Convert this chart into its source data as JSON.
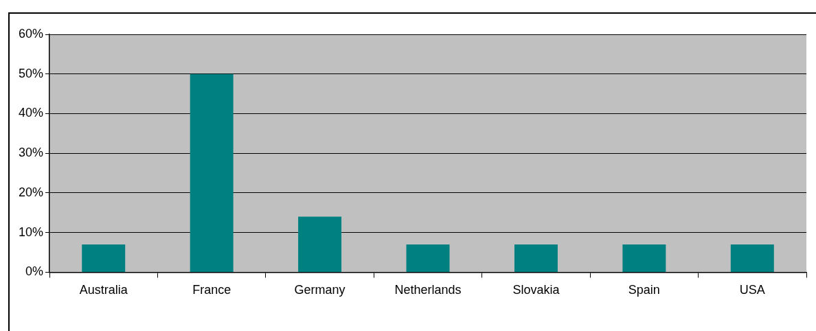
{
  "chart_data": {
    "type": "bar",
    "categories": [
      "Australia",
      "France",
      "Germany",
      "Netherlands",
      "Slovakia",
      "Spain",
      "USA"
    ],
    "values": [
      7,
      50,
      14,
      7,
      7,
      7,
      7
    ],
    "color": "#008080",
    "ylim": [
      0,
      60
    ],
    "yticks": [
      {
        "value": 0,
        "label": "0%"
      },
      {
        "value": 10,
        "label": "10%"
      },
      {
        "value": 20,
        "label": "20%"
      },
      {
        "value": 30,
        "label": "30%"
      },
      {
        "value": 40,
        "label": "40%"
      },
      {
        "value": 50,
        "label": "50%"
      },
      {
        "value": 60,
        "label": "60%"
      }
    ],
    "grid": "y",
    "legend": false
  }
}
